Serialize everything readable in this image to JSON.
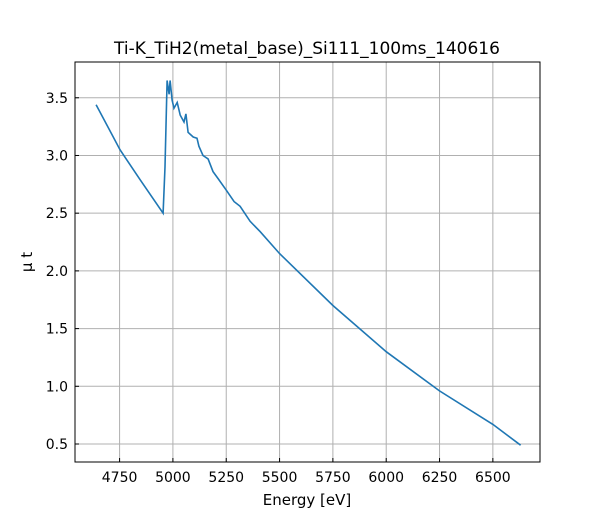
{
  "chart_data": {
    "type": "line",
    "title": "Ti-K_TiH2(metal_base)_Si111_100ms_140616",
    "xlabel": "Energy [eV]",
    "ylabel": "μ t",
    "xlim": [
      4541,
      6721
    ],
    "ylim": [
      0.344,
      3.81
    ],
    "xticks": [
      4750,
      5000,
      5250,
      5500,
      5750,
      6000,
      6250,
      6500
    ],
    "yticks": [
      0.5,
      1.0,
      1.5,
      2.0,
      2.5,
      3.0,
      3.5
    ],
    "grid": true,
    "color": "#1f77b4",
    "series": [
      {
        "name": "mu_t",
        "x": [
          4640,
          4752,
          4846,
          4954,
          4963,
          4973,
          4982,
          4987,
          4996,
          5005,
          5020,
          5034,
          5052,
          5061,
          5071,
          5095,
          5113,
          5122,
          5141,
          5165,
          5188,
          5212,
          5250,
          5287,
          5315,
          5362,
          5409,
          5500,
          5750,
          6000,
          6250,
          6500,
          6630
        ],
        "y": [
          3.44,
          3.05,
          2.79,
          2.5,
          2.9,
          3.65,
          3.53,
          3.65,
          3.48,
          3.41,
          3.46,
          3.35,
          3.29,
          3.36,
          3.2,
          3.16,
          3.15,
          3.08,
          3.0,
          2.97,
          2.86,
          2.8,
          2.7,
          2.6,
          2.56,
          2.43,
          2.34,
          2.15,
          1.7,
          1.3,
          0.96,
          0.67,
          0.49
        ]
      }
    ]
  }
}
